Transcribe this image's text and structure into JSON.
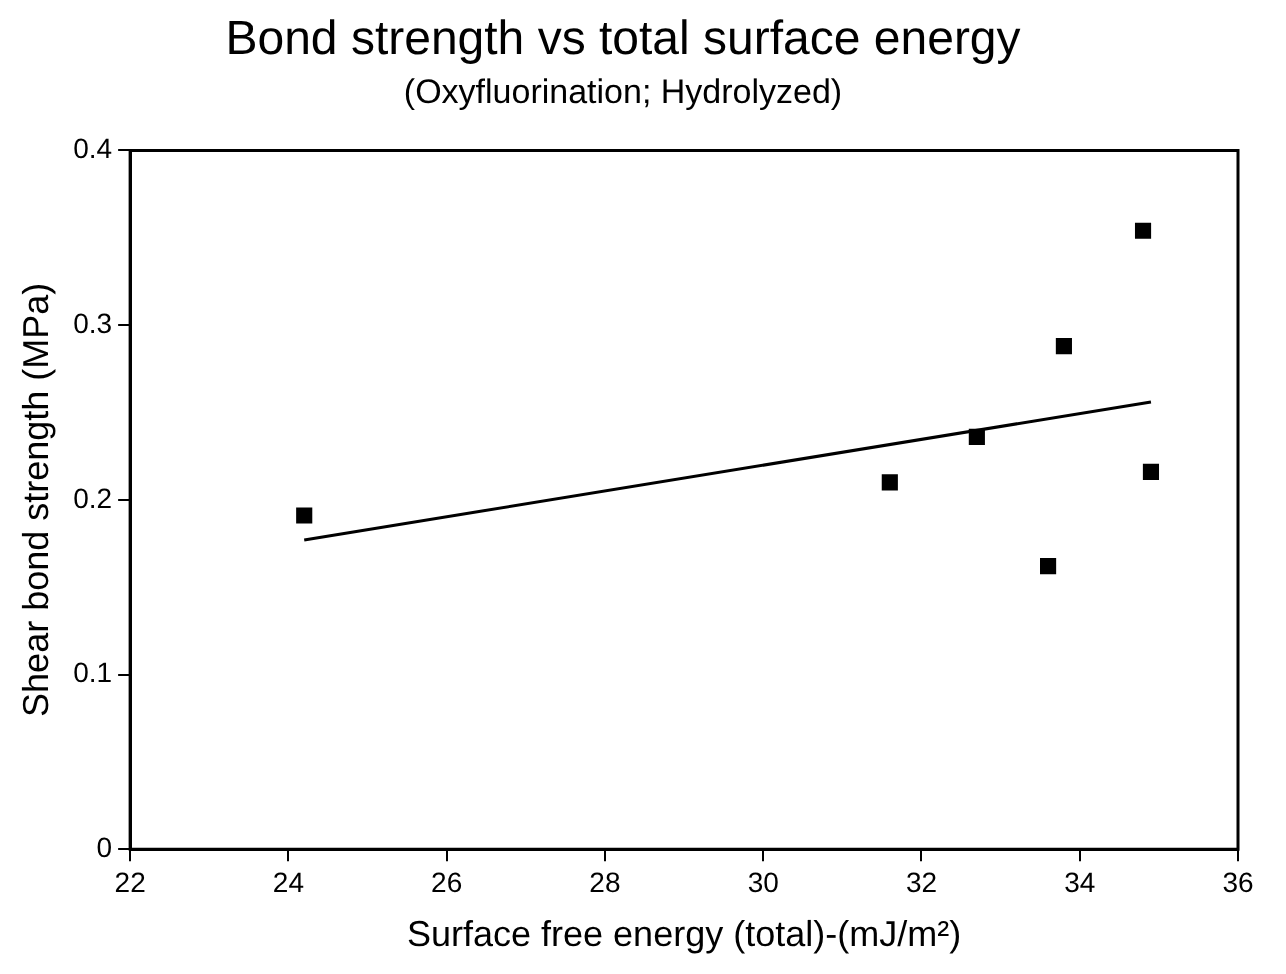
{
  "chart_data": {
    "type": "scatter",
    "title": "Bond strength vs total surface energy",
    "subtitle": "(Oxyfluorination; Hydrolyzed)",
    "xlabel": "Surface free energy (total)-(mJ/m²)",
    "ylabel": "Shear bond strength (MPa)",
    "xlim": [
      22,
      36
    ],
    "xticks": [
      22,
      24,
      26,
      28,
      30,
      32,
      34,
      36
    ],
    "ylim": [
      0,
      0.4
    ],
    "yticks": [
      0,
      0.1,
      0.2,
      0.3,
      0.4
    ],
    "grid": false,
    "legend": false,
    "marker": "square",
    "series": [
      {
        "color": "#000000",
        "x": [
          24.2,
          31.6,
          32.7,
          33.6,
          33.8,
          34.8,
          34.9
        ],
        "values": [
          0.191,
          0.21,
          0.236,
          0.162,
          0.288,
          0.354,
          0.216
        ]
      },
      {
        "type": "line",
        "color": "#000000",
        "marker": "none",
        "x": [
          24.2,
          34.9
        ],
        "values": [
          0.177,
          0.256
        ]
      }
    ]
  }
}
